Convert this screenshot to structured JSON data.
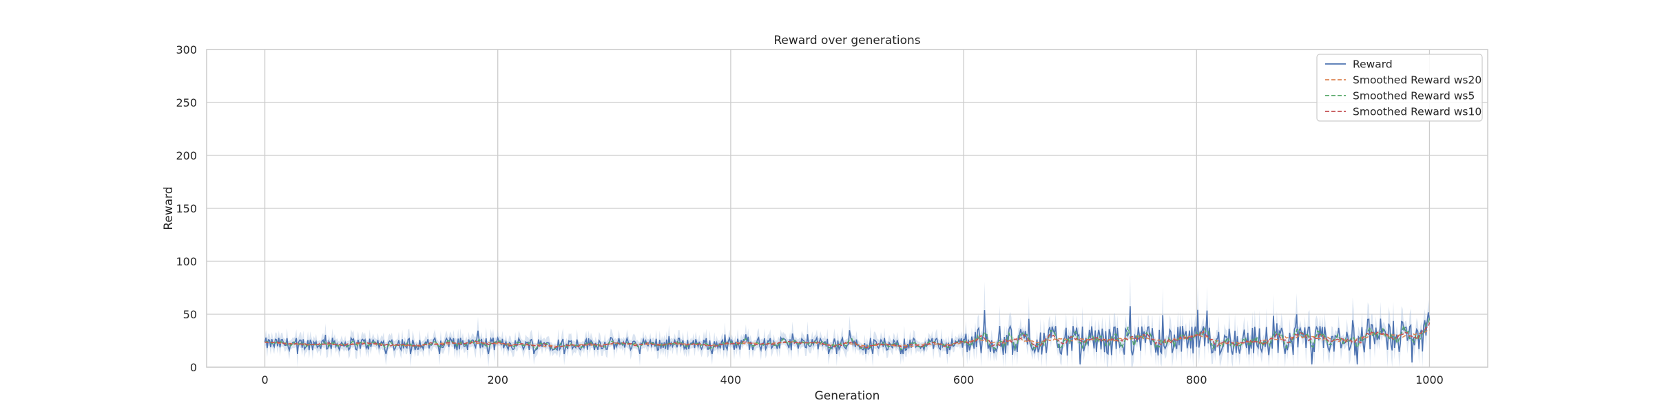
{
  "chart_data": {
    "type": "line",
    "title": "Reward over generations",
    "xlabel": "Generation",
    "ylabel": "Reward",
    "xlim": [
      -50,
      1050
    ],
    "ylim": [
      0,
      300
    ],
    "xticks": [
      0,
      200,
      400,
      600,
      800,
      1000
    ],
    "yticks": [
      0,
      50,
      100,
      150,
      200,
      250,
      300
    ],
    "grid": true,
    "legend_position": "top-right",
    "band_color": "#aec3e0",
    "sample_points": 1001,
    "x_range": [
      0,
      1000
    ],
    "regimes": [
      {
        "x": [
          0,
          600
        ],
        "mean": 22,
        "jitter": 6,
        "spike_max": 36
      },
      {
        "x": [
          600,
          940
        ],
        "mean": 25,
        "jitter": 14,
        "spike_max": 58
      },
      {
        "x": [
          940,
          1000
        ],
        "mean": 30,
        "jitter": 16,
        "spike_max": 56
      }
    ],
    "series": [
      {
        "name": "Reward",
        "color": "#4c72b0",
        "style": "solid",
        "window": 1
      },
      {
        "name": "Smoothed Reward ws20",
        "color": "#dd8452",
        "style": "dashed",
        "window": 20
      },
      {
        "name": "Smoothed Reward ws5",
        "color": "#55a868",
        "style": "dashed",
        "window": 5
      },
      {
        "name": "Smoothed Reward ws10",
        "color": "#c44e52",
        "style": "dashed",
        "window": 10
      }
    ]
  }
}
